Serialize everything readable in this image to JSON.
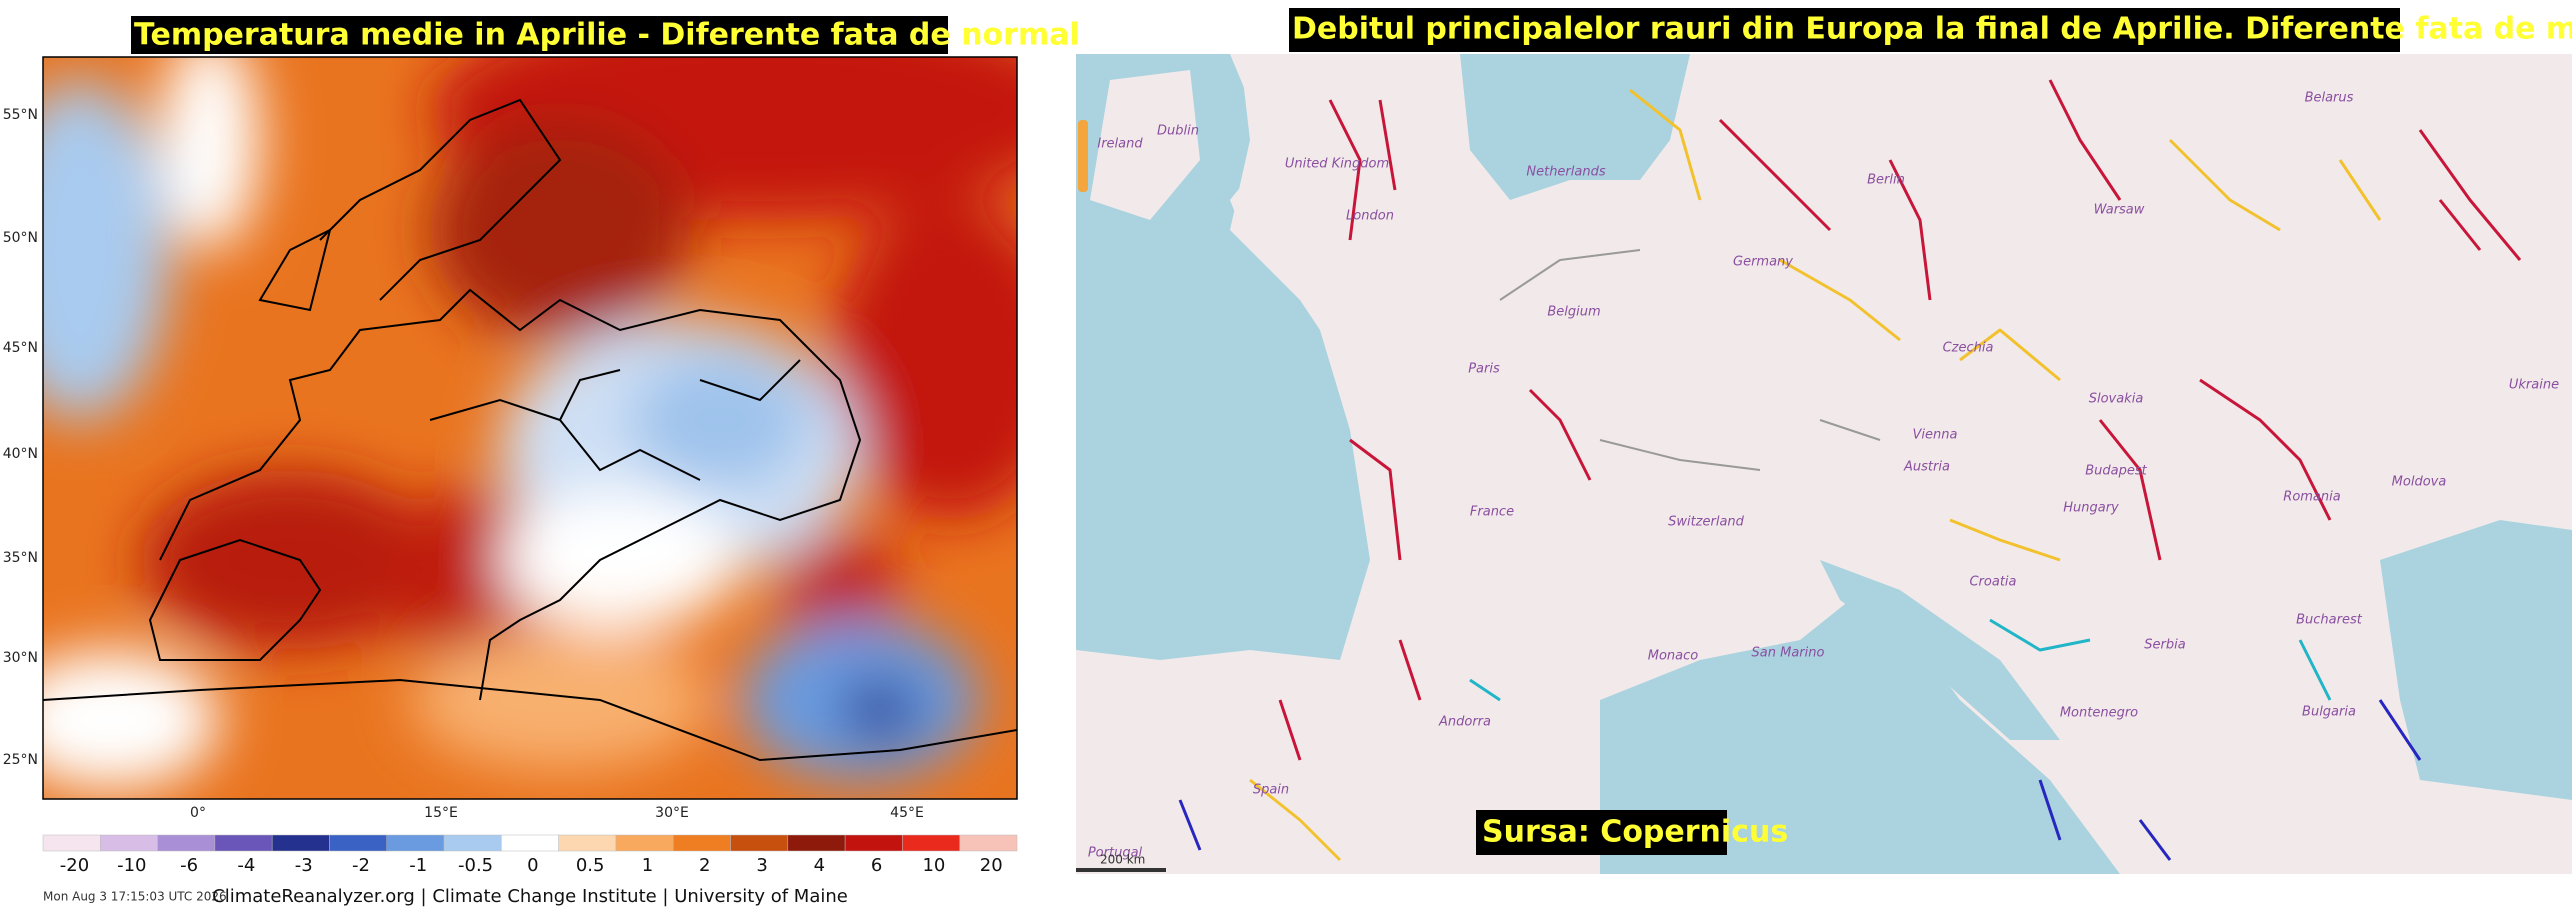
{
  "left_map": {
    "title": "Temperatura medie in Aprilie - Diferente fata de normal",
    "lat_labels": [
      "55°N",
      "50°N",
      "45°N",
      "40°N",
      "35°N",
      "30°N",
      "25°N"
    ],
    "lon_labels": [
      "0°",
      "15°E",
      "30°E",
      "45°E"
    ],
    "colorbar": {
      "labels": [
        -20,
        -10,
        -6,
        -4,
        -3,
        -2,
        -1,
        -0.5,
        0,
        0.5,
        1,
        2,
        3,
        4,
        6,
        10,
        20
      ],
      "colors": [
        "#f6e4ef",
        "#d8bde6",
        "#a98fd6",
        "#6a56b8",
        "#25318f",
        "#3a62c4",
        "#6a9be0",
        "#a9cbef",
        "#ffffff",
        "#fcd7b0",
        "#f8a95e",
        "#ef7d22",
        "#c8500f",
        "#8e1a0c",
        "#c3130f",
        "#ea2a1c",
        "#f7c2b8"
      ]
    },
    "timestamp": "Mon Aug 3 17:15:03 UTC 2026",
    "credit": "ClimateReanalyzer.org | Climate Change Institute | University of Maine"
  },
  "right_map": {
    "title": "Debitul principalelor rauri din Europa la final de Aprilie. Diferente fata de medie",
    "places": [
      "Ireland",
      "Dublin",
      "United Kingdom",
      "London",
      "Netherlands",
      "Belgium",
      "Germany",
      "Berlin",
      "Warsaw",
      "Belarus",
      "Ukraine",
      "Paris",
      "France",
      "Switzerland",
      "Austria",
      "Czechia",
      "Slovakia",
      "Vienna",
      "Budapest",
      "Hungary",
      "Romania",
      "Bucharest",
      "Moldova",
      "Serbia",
      "Bulgaria",
      "Montenegro",
      "Croatia",
      "San Marino",
      "Monaco",
      "Andorra",
      "Spain",
      "Portugal"
    ],
    "source": "Sursa: Copernicus",
    "scale": "200 km"
  }
}
